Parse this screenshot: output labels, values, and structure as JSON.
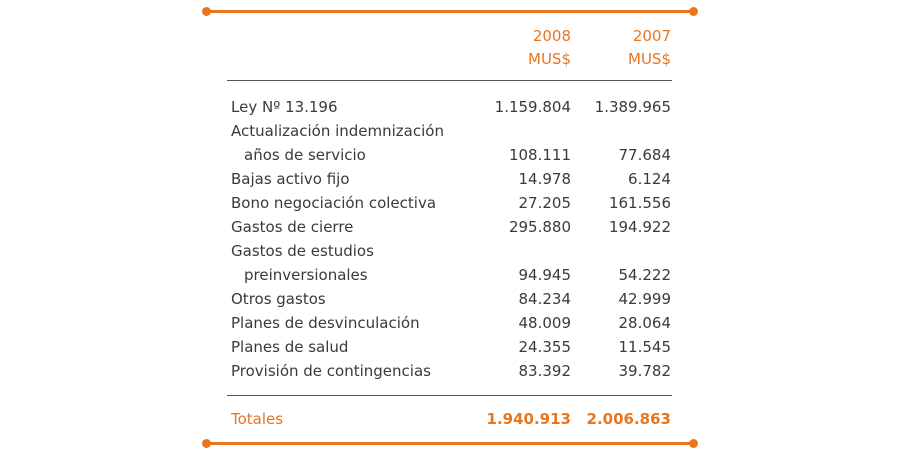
{
  "header": {
    "year_2008": "2008",
    "year_2007": "2007",
    "unit_2008": "MUS$",
    "unit_2007": "MUS$"
  },
  "rows": [
    {
      "label": "Ley Nº 13.196",
      "v2008": "1.159.804",
      "v2007": "1.389.965"
    },
    {
      "label": "Actualización indemnización",
      "v2008": "",
      "v2007": ""
    },
    {
      "label": "años de servicio",
      "v2008": "108.111",
      "v2007": "77.684"
    },
    {
      "label": "Bajas activo fijo",
      "v2008": "14.978",
      "v2007": "6.124"
    },
    {
      "label": "Bono negociación colectiva",
      "v2008": "27.205",
      "v2007": "161.556"
    },
    {
      "label": "Gastos de cierre",
      "v2008": "295.880",
      "v2007": "194.922"
    },
    {
      "label": "Gastos de estudios",
      "v2008": "",
      "v2007": ""
    },
    {
      "label": "preinversionales",
      "v2008": "94.945",
      "v2007": "54.222"
    },
    {
      "label": "Otros gastos",
      "v2008": "84.234",
      "v2007": "42.999"
    },
    {
      "label": "Planes de desvinculación",
      "v2008": "48.009",
      "v2007": "28.064"
    },
    {
      "label": "Planes de salud",
      "v2008": "24.355",
      "v2007": "11.545"
    },
    {
      "label": "Provisión de contingencias",
      "v2008": "83.392",
      "v2007": "39.782"
    }
  ],
  "total": {
    "label": "Totales",
    "v2008": "1.940.913",
    "v2007": "2.006.863"
  },
  "colors": {
    "accent": "#e8761f",
    "text": "#3a3a3a"
  }
}
